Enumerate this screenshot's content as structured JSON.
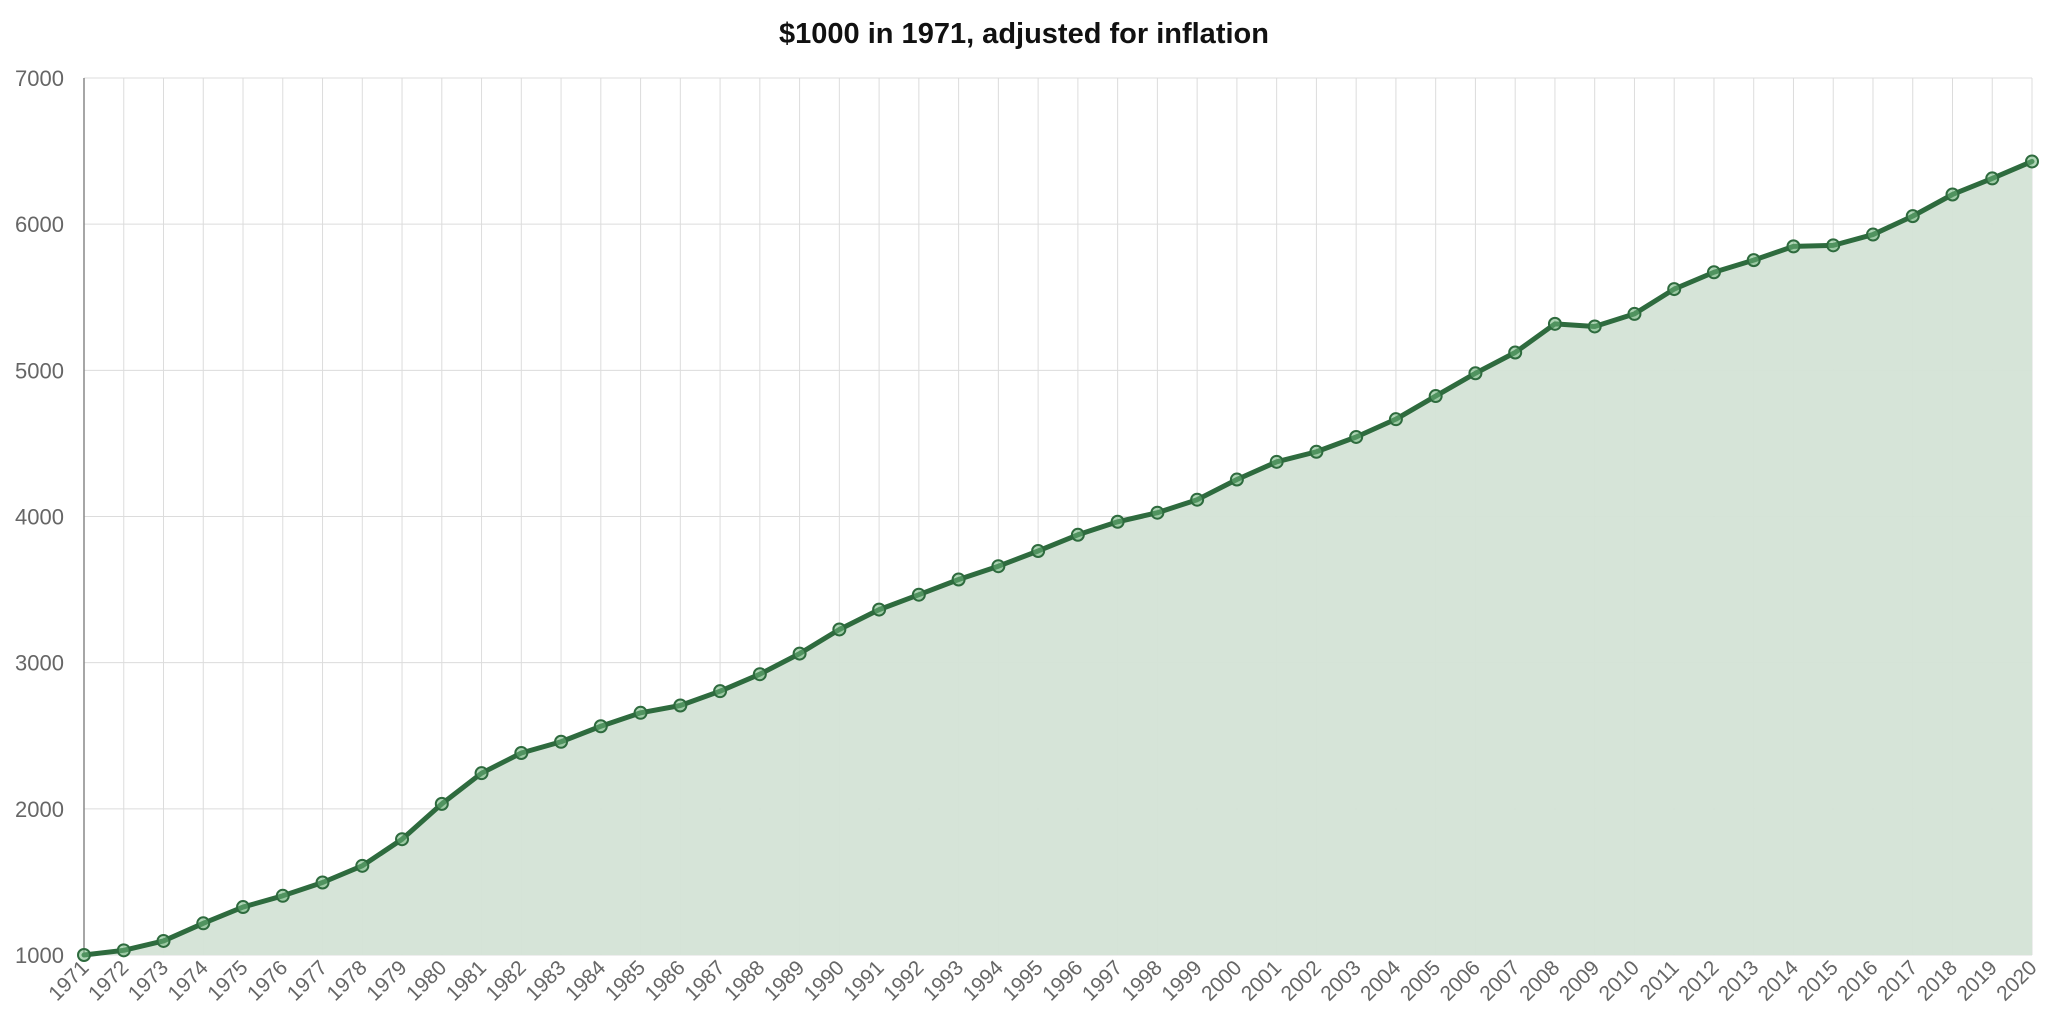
{
  "chart_data": {
    "type": "area",
    "title": "$1000 in 1971, adjusted for inflation",
    "xlabel": "",
    "ylabel": "",
    "ylim": [
      1000,
      7000
    ],
    "yticks": [
      1000,
      2000,
      3000,
      4000,
      5000,
      6000,
      7000
    ],
    "grid": true,
    "legend": "none",
    "colors": {
      "line": "#2e6b3e",
      "fill": "#d4e3d6",
      "marker_fill": "#6db47a"
    },
    "x": [
      1971,
      1972,
      1973,
      1974,
      1975,
      1976,
      1977,
      1978,
      1979,
      1980,
      1981,
      1982,
      1983,
      1984,
      1985,
      1986,
      1987,
      1988,
      1989,
      1990,
      1991,
      1992,
      1993,
      1994,
      1995,
      1996,
      1997,
      1998,
      1999,
      2000,
      2001,
      2002,
      2003,
      2004,
      2005,
      2006,
      2007,
      2008,
      2009,
      2010,
      2011,
      2012,
      2013,
      2014,
      2015,
      2016,
      2017,
      2018,
      2019,
      2020
    ],
    "series": [
      {
        "values": [
          1000,
          1032,
          1096,
          1217,
          1328,
          1405,
          1496,
          1610,
          1792,
          2034,
          2244,
          2382,
          2459,
          2565,
          2657,
          2707,
          2805,
          2921,
          3062,
          3227,
          3363,
          3465,
          3569,
          3660,
          3764,
          3875,
          3964,
          4026,
          4115,
          4253,
          4374,
          4443,
          4544,
          4666,
          4824,
          4980,
          5122,
          5318,
          5300,
          5386,
          5556,
          5671,
          5754,
          5848,
          5855,
          5929,
          6055,
          6203,
          6313,
          6429
        ]
      }
    ]
  }
}
